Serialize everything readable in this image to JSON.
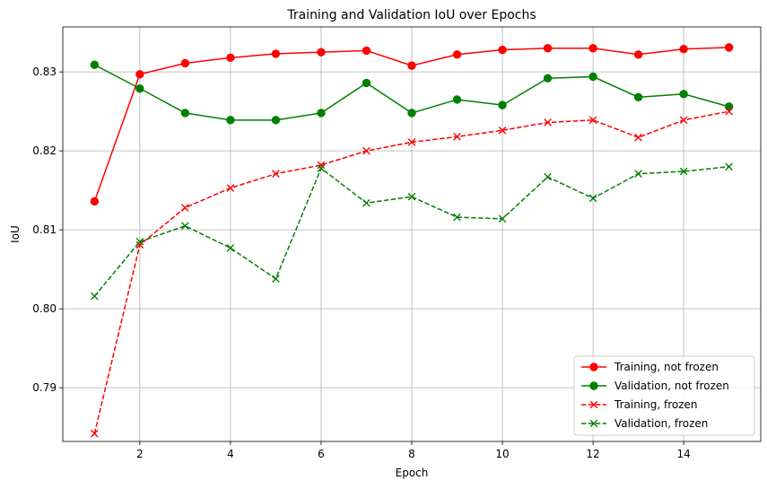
{
  "chart_data": {
    "type": "line",
    "title": "Training and Validation IoU over Epochs",
    "xlabel": "Epoch",
    "ylabel": "IoU",
    "xlim": [
      0.3,
      15.7
    ],
    "ylim": [
      0.7832,
      0.8357
    ],
    "xticks": [
      2,
      4,
      6,
      8,
      10,
      12,
      14
    ],
    "xtick_labels": [
      "2",
      "4",
      "6",
      "8",
      "10",
      "12",
      "14"
    ],
    "yticks": [
      0.79,
      0.8,
      0.81,
      0.82,
      0.83
    ],
    "ytick_labels": [
      "0.79",
      "0.80",
      "0.81",
      "0.82",
      "0.83"
    ],
    "grid": true,
    "legend_position": "lower-right",
    "x": [
      1,
      2,
      3,
      4,
      5,
      6,
      7,
      8,
      9,
      10,
      11,
      12,
      13,
      14,
      15
    ],
    "series": [
      {
        "name": "Training, not frozen",
        "color": "#ff0000",
        "linestyle": "solid",
        "marker": "circle",
        "values": [
          0.8136,
          0.8297,
          0.8311,
          0.8318,
          0.8323,
          0.8325,
          0.8327,
          0.8308,
          0.8322,
          0.8328,
          0.833,
          0.833,
          0.8322,
          0.8329,
          0.8331
        ]
      },
      {
        "name": "Validation, not frozen",
        "color": "#008000",
        "linestyle": "solid",
        "marker": "circle",
        "values": [
          0.8309,
          0.8279,
          0.8248,
          0.8239,
          0.8239,
          0.8248,
          0.8286,
          0.8248,
          0.8265,
          0.8258,
          0.8292,
          0.8294,
          0.8268,
          0.8272,
          0.8256
        ]
      },
      {
        "name": "Training, frozen",
        "color": "#ff0000",
        "linestyle": "dashed",
        "marker": "x",
        "values": [
          0.7842,
          0.8081,
          0.8128,
          0.8153,
          0.8171,
          0.8182,
          0.82,
          0.8211,
          0.8218,
          0.8226,
          0.8236,
          0.8239,
          0.8217,
          0.8239,
          0.825
        ]
      },
      {
        "name": "Validation, frozen",
        "color": "#008000",
        "linestyle": "dashed",
        "marker": "x",
        "values": [
          0.8016,
          0.8085,
          0.8105,
          0.8077,
          0.8038,
          0.8178,
          0.8134,
          0.8142,
          0.8116,
          0.8114,
          0.8167,
          0.814,
          0.8171,
          0.8174,
          0.818
        ]
      }
    ]
  }
}
